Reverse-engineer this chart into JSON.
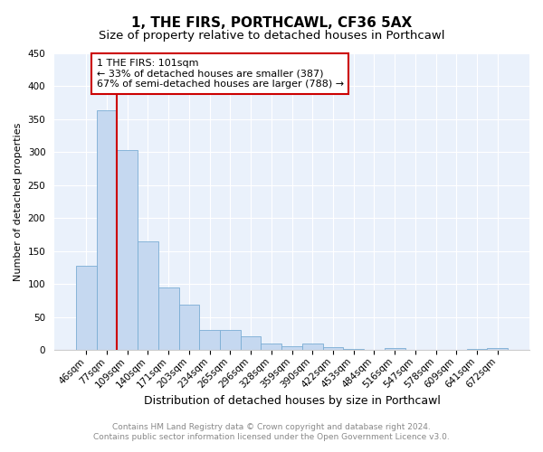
{
  "title": "1, THE FIRS, PORTHCAWL, CF36 5AX",
  "subtitle": "Size of property relative to detached houses in Porthcawl",
  "xlabel": "Distribution of detached houses by size in Porthcawl",
  "ylabel": "Number of detached properties",
  "footnote1": "Contains HM Land Registry data © Crown copyright and database right 2024.",
  "footnote2": "Contains public sector information licensed under the Open Government Licence v3.0.",
  "bar_labels": [
    "46sqm",
    "77sqm",
    "109sqm",
    "140sqm",
    "171sqm",
    "203sqm",
    "234sqm",
    "265sqm",
    "296sqm",
    "328sqm",
    "359sqm",
    "390sqm",
    "422sqm",
    "453sqm",
    "484sqm",
    "516sqm",
    "547sqm",
    "578sqm",
    "609sqm",
    "641sqm",
    "672sqm"
  ],
  "bar_values": [
    128,
    363,
    303,
    164,
    95,
    69,
    30,
    30,
    20,
    10,
    6,
    10,
    4,
    1,
    0,
    3,
    0,
    0,
    0,
    1,
    3
  ],
  "bar_color": "#c5d8f0",
  "bar_edge_color": "#7aadd4",
  "annotation_text": "1 THE FIRS: 101sqm\n← 33% of detached houses are smaller (387)\n67% of semi-detached houses are larger (788) →",
  "annotation_box_color": "#ffffff",
  "annotation_box_edge_color": "#cc0000",
  "red_line_color": "#cc0000",
  "red_line_index": 2,
  "ylim": [
    0,
    450
  ],
  "yticks": [
    0,
    50,
    100,
    150,
    200,
    250,
    300,
    350,
    400,
    450
  ],
  "plot_bg": "#eaf1fb",
  "title_fontsize": 11,
  "subtitle_fontsize": 9.5,
  "ylabel_fontsize": 8,
  "xlabel_fontsize": 9,
  "tick_fontsize": 7.5,
  "annot_fontsize": 8,
  "footnote_fontsize": 6.5
}
